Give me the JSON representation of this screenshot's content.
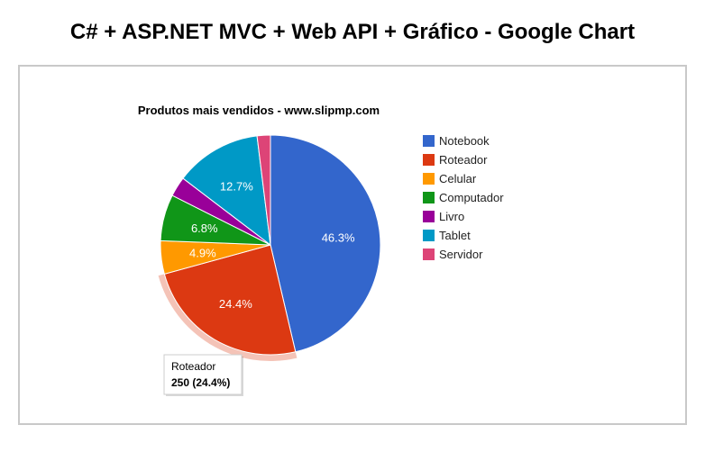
{
  "page": {
    "heading": "C# + ASP.NET MVC + Web API + Gráfico - Google Chart"
  },
  "chart_data": {
    "type": "pie",
    "title": "Produtos mais vendidos - www.slipmp.com",
    "categories": [
      "Notebook",
      "Roteador",
      "Celular",
      "Computador",
      "Livro",
      "Tablet",
      "Servidor"
    ],
    "values": [
      475,
      250,
      50,
      70,
      30,
      130,
      20
    ],
    "percent_labels": [
      "46.3%",
      "24.4%",
      "4.9%",
      "6.8%",
      "",
      "12.7%",
      ""
    ],
    "colors": [
      "#3366cc",
      "#dc3912",
      "#ff9900",
      "#109618",
      "#990099",
      "#0099c6",
      "#dd4477"
    ],
    "legend_position": "right",
    "highlighted": {
      "category": "Roteador",
      "value_text": "250 (24.4%)"
    }
  }
}
